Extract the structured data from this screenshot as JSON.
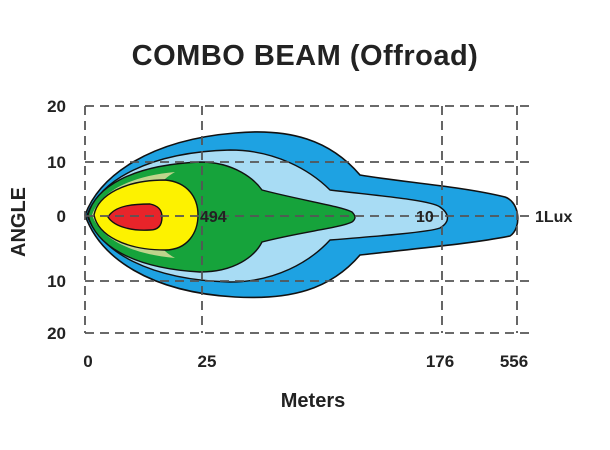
{
  "chart_data": {
    "type": "area",
    "title": "COMBO  BEAM (Offroad)",
    "xlabel": "Meters",
    "ylabel": "ANGLE",
    "x_ticks": [
      "0",
      "25",
      "176",
      "556"
    ],
    "y_ticks": [
      "20",
      "10",
      "0",
      "10",
      "20"
    ],
    "grid": true,
    "contours": [
      {
        "label": "494",
        "color": "#e8242a"
      },
      {
        "label": "",
        "color": "#fdf200"
      },
      {
        "label": "",
        "color": "#16a33b"
      },
      {
        "label": "10",
        "color": "#a8dcf4"
      },
      {
        "label": "1Lux",
        "color": "#1ea2e2"
      }
    ]
  }
}
